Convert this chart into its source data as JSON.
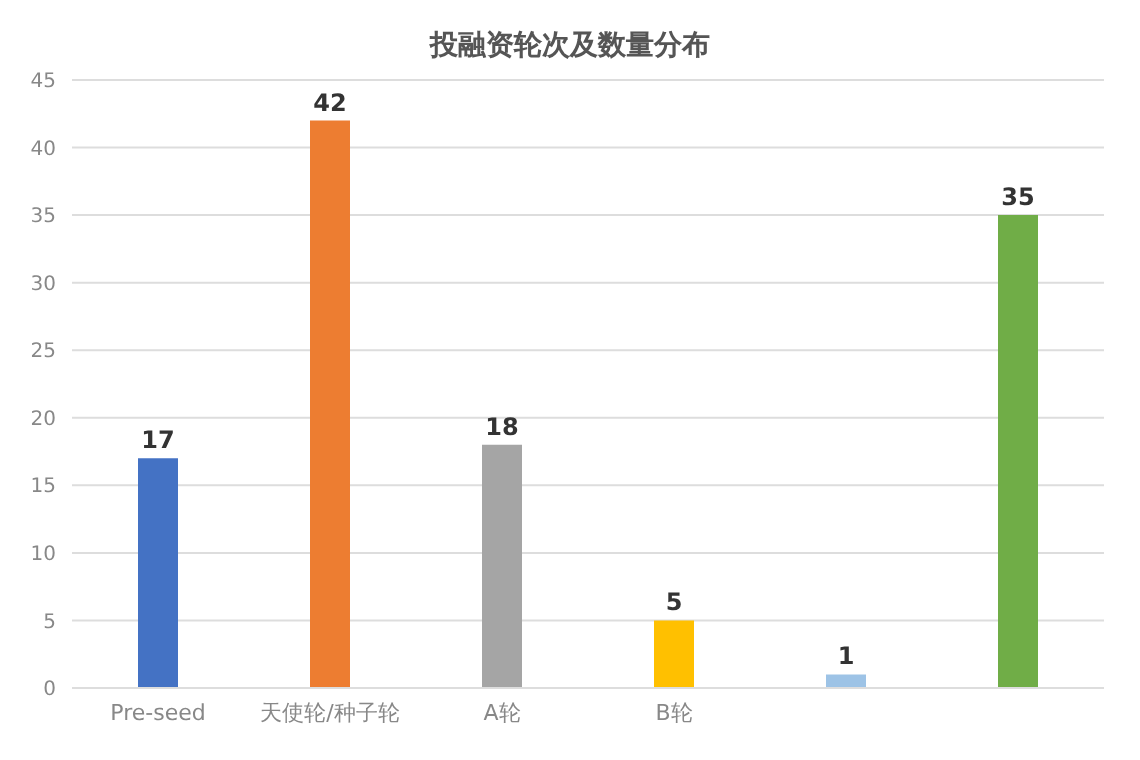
{
  "chart_data": {
    "type": "bar",
    "title": "投融资轮次及数量分布",
    "categories": [
      "Pre-seed",
      "天使轮/种子轮",
      "A轮",
      "B轮",
      null,
      null
    ],
    "values": [
      17,
      42,
      18,
      5,
      1,
      35
    ],
    "colors": [
      "#4472c4",
      "#ed7d31",
      "#a5a5a5",
      "#ffc000",
      "#9dc3e6",
      "#70ad47"
    ],
    "ylim": [
      0,
      45
    ],
    "yticks": [
      0,
      5,
      10,
      15,
      20,
      25,
      30,
      35,
      40,
      45
    ],
    "grid": "y",
    "data_labels": true
  }
}
